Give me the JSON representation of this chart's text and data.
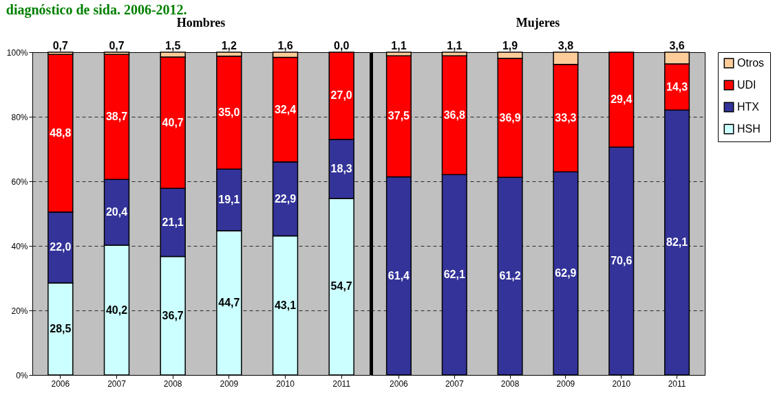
{
  "chart_data": [
    {
      "type": "bar",
      "title": "diagnóstico de sida. 2006-2012.",
      "subtitle": "Hombres",
      "stacked": true,
      "categories": [
        "2006",
        "2007",
        "2008",
        "2009",
        "2010",
        "2011"
      ],
      "series": [
        {
          "name": "HSH",
          "color": "#ccffff",
          "values": [
            28.5,
            40.2,
            36.7,
            44.7,
            43.1,
            54.7
          ],
          "value_labels": [
            "28,5",
            "40,2",
            "36,7",
            "44,7",
            "43,1",
            "54,7"
          ]
        },
        {
          "name": "HTX",
          "color": "#333399",
          "values": [
            22.0,
            20.4,
            21.1,
            19.1,
            22.9,
            18.3
          ],
          "value_labels": [
            "22,0",
            "20,4",
            "21,1",
            "19,1",
            "22,9",
            "18,3"
          ]
        },
        {
          "name": "UDI",
          "color": "#ff0000",
          "values": [
            48.8,
            38.7,
            40.7,
            35.0,
            32.4,
            27.0
          ],
          "value_labels": [
            "48,8",
            "38,7",
            "40,7",
            "35,0",
            "32,4",
            "27,0"
          ]
        },
        {
          "name": "Otros",
          "color": "#ffcc99",
          "values": [
            0.7,
            0.7,
            1.5,
            1.2,
            1.6,
            0.0
          ],
          "value_labels": [
            "0,7",
            "0,7",
            "1,5",
            "1,2",
            "1,6",
            "0,0"
          ]
        }
      ],
      "ylim": [
        0,
        100
      ],
      "yticks": [
        {
          "value": 0,
          "label": "0%"
        },
        {
          "value": 20,
          "label": "20%"
        },
        {
          "value": 40,
          "label": "40%"
        },
        {
          "value": 60,
          "label": "60%"
        },
        {
          "value": 80,
          "label": "80%"
        },
        {
          "value": 100,
          "label": "100%"
        }
      ],
      "grid": "y",
      "legend": "right"
    },
    {
      "type": "bar",
      "title": "Mujeres",
      "stacked": true,
      "categories": [
        "2006",
        "2007",
        "2008",
        "2009",
        "2010",
        "2011"
      ],
      "series": [
        {
          "name": "HSH",
          "color": "#ccffff",
          "values": [
            null,
            null,
            null,
            null,
            null,
            null
          ],
          "value_labels": [
            null,
            null,
            null,
            null,
            null,
            null
          ]
        },
        {
          "name": "HTX",
          "color": "#333399",
          "values": [
            61.4,
            62.1,
            61.2,
            62.9,
            70.6,
            82.1
          ],
          "value_labels": [
            "61,4",
            "62,1",
            "61,2",
            "62,9",
            "70,6",
            "82,1"
          ]
        },
        {
          "name": "UDI",
          "color": "#ff0000",
          "values": [
            37.5,
            36.8,
            36.9,
            33.3,
            29.4,
            14.3
          ],
          "value_labels": [
            "37,5",
            "36,8",
            "36,9",
            "33,3",
            "29,4",
            "14,3"
          ]
        },
        {
          "name": "Otros",
          "color": "#ffcc99",
          "values": [
            1.1,
            1.1,
            1.9,
            3.8,
            null,
            3.6
          ],
          "value_labels": [
            "1,1",
            "1,1",
            "1,9",
            "3,8",
            null,
            "3,6"
          ]
        }
      ],
      "ylim": [
        0,
        100
      ],
      "yticks": [
        0,
        20,
        40,
        60,
        80,
        100
      ],
      "grid": "y",
      "tick_labels": "x",
      "legend": "right"
    }
  ]
}
